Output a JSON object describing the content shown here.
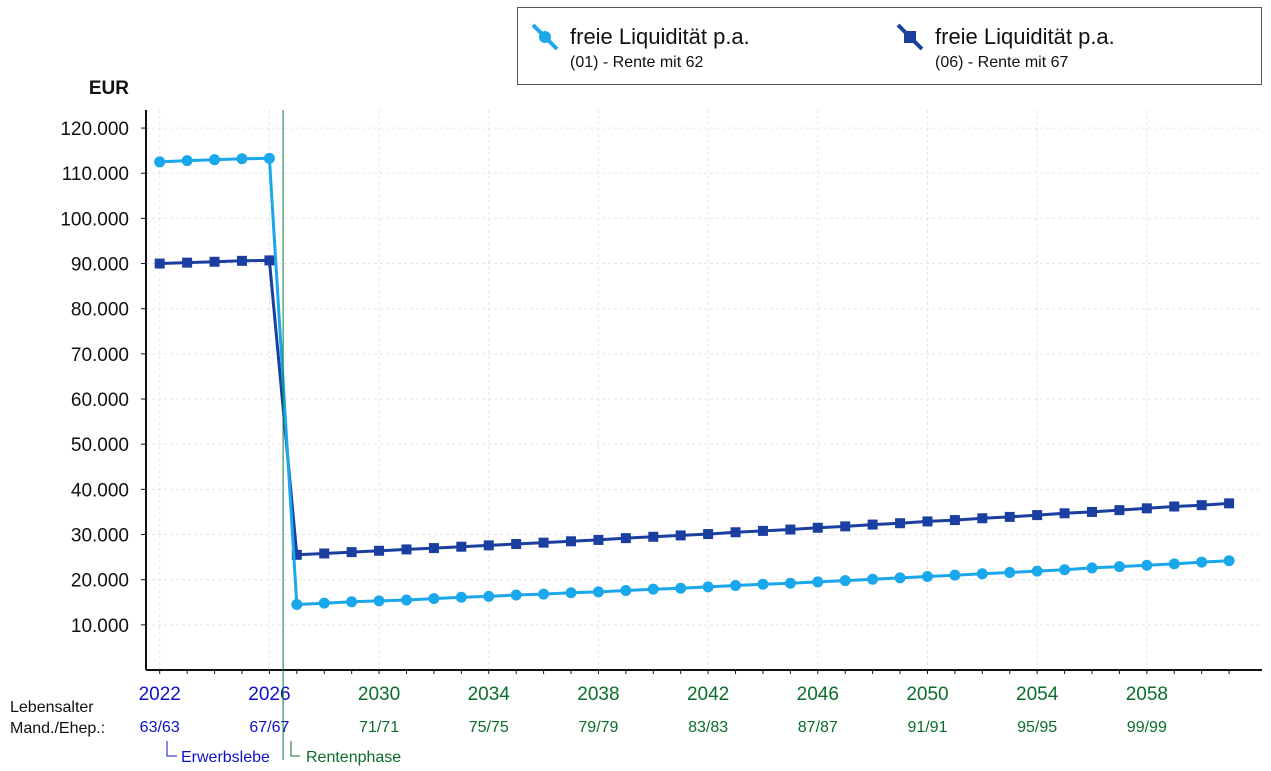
{
  "chart_data": {
    "type": "line",
    "ylabel": "EUR",
    "ylim": [
      0,
      124000
    ],
    "y_ticks": [
      10000,
      20000,
      30000,
      40000,
      50000,
      60000,
      70000,
      80000,
      90000,
      100000,
      110000,
      120000
    ],
    "y_tick_labels": [
      "10.000",
      "20.000",
      "30.000",
      "40.000",
      "50.000",
      "60.000",
      "70.000",
      "80.000",
      "90.000",
      "100.000",
      "110.000",
      "120.000"
    ],
    "x_range": [
      2021.5,
      2062.2
    ],
    "x_ticks": [
      {
        "year": 2022,
        "label": "2022",
        "age": "63/63",
        "phase": "work"
      },
      {
        "year": 2026,
        "label": "2026",
        "age": "67/67",
        "phase": "work"
      },
      {
        "year": 2030,
        "label": "2030",
        "age": "71/71",
        "phase": "retire"
      },
      {
        "year": 2034,
        "label": "2034",
        "age": "75/75",
        "phase": "retire"
      },
      {
        "year": 2038,
        "label": "2038",
        "age": "79/79",
        "phase": "retire"
      },
      {
        "year": 2042,
        "label": "2042",
        "age": "83/83",
        "phase": "retire"
      },
      {
        "year": 2046,
        "label": "2046",
        "age": "87/87",
        "phase": "retire"
      },
      {
        "year": 2050,
        "label": "2050",
        "age": "91/91",
        "phase": "retire"
      },
      {
        "year": 2054,
        "label": "2054",
        "age": "95/95",
        "phase": "retire"
      },
      {
        "year": 2058,
        "label": "2058",
        "age": "99/99",
        "phase": "retire"
      }
    ],
    "phase_boundary_year": 2026.5,
    "x": [
      2022,
      2023,
      2024,
      2025,
      2026,
      2027,
      2028,
      2029,
      2030,
      2031,
      2032,
      2033,
      2034,
      2035,
      2036,
      2037,
      2038,
      2039,
      2040,
      2041,
      2042,
      2043,
      2044,
      2045,
      2046,
      2047,
      2048,
      2049,
      2050,
      2051,
      2052,
      2053,
      2054,
      2055,
      2056,
      2057,
      2058,
      2059,
      2060,
      2061
    ],
    "series": [
      {
        "name": "freie Liquidität p.a.",
        "subtitle": "(01) - Rente mit 62",
        "color": "#1aa7ec",
        "marker": "circle",
        "values": [
          112500,
          112800,
          113000,
          113200,
          113300,
          14500,
          14800,
          15100,
          15300,
          15500,
          15800,
          16100,
          16300,
          16600,
          16800,
          17100,
          17300,
          17600,
          17900,
          18100,
          18400,
          18700,
          19000,
          19200,
          19500,
          19800,
          20100,
          20400,
          20700,
          21000,
          21300,
          21600,
          21900,
          22200,
          22600,
          22900,
          23200,
          23500,
          23900,
          24200
        ]
      },
      {
        "name": "freie Liquidität p.a.",
        "subtitle": "(06) - Rente mit 67",
        "color": "#1a3fa0",
        "marker": "square",
        "values": [
          90000,
          90200,
          90400,
          90600,
          90700,
          25500,
          25800,
          26100,
          26400,
          26700,
          27000,
          27300,
          27600,
          27900,
          28200,
          28500,
          28800,
          29200,
          29500,
          29800,
          30100,
          30500,
          30800,
          31100,
          31500,
          31800,
          32200,
          32500,
          32900,
          33200,
          33600,
          33900,
          34300,
          34700,
          35000,
          35400,
          35800,
          36200,
          36500,
          36900
        ]
      }
    ],
    "colors": {
      "work": "#1010c8",
      "retire": "#0a6e2a",
      "boundary": "#0a7a3a",
      "axis": "#111111",
      "grid": "#e6e6e6"
    },
    "bottom": {
      "age_label_1": "Lebensalter",
      "age_label_2": "Mand./Ehep.:",
      "phase_work": "Erwerbslebe",
      "phase_retire": "Rentenphase"
    }
  }
}
